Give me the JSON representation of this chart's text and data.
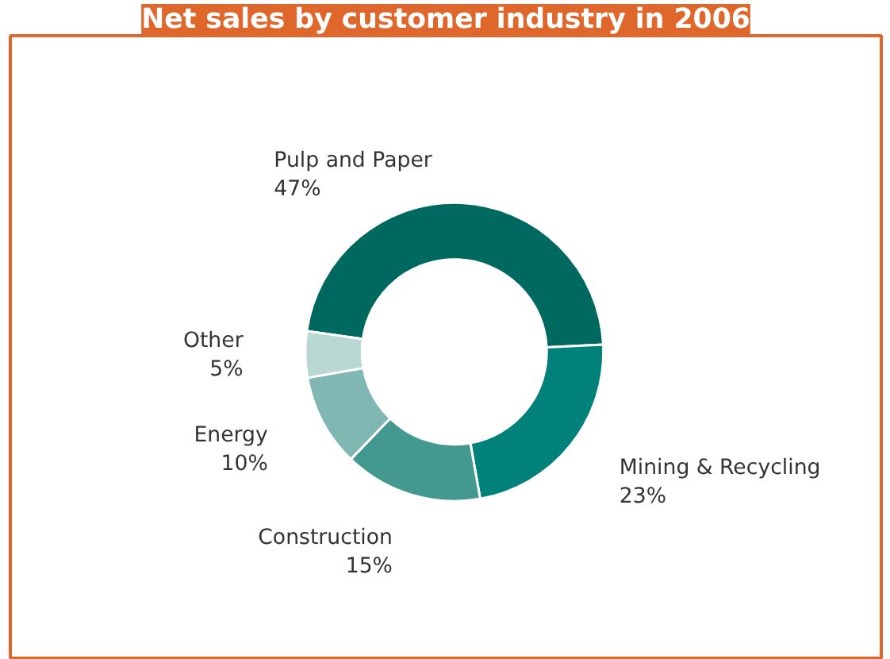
{
  "chart_data": {
    "type": "donut",
    "title": "Net sales by customer industry in 2006",
    "categories": [
      "Pulp and Paper",
      "Mining & Recycling",
      "Construction",
      "Energy",
      "Other"
    ],
    "values": [
      47,
      23,
      15,
      10,
      5
    ],
    "value_labels": [
      "47%",
      "23%",
      "15%",
      "10%",
      "5%"
    ],
    "colors": [
      "#00695f",
      "#00827a",
      "#43988f",
      "#80b7b2",
      "#b9d8d4"
    ]
  }
}
